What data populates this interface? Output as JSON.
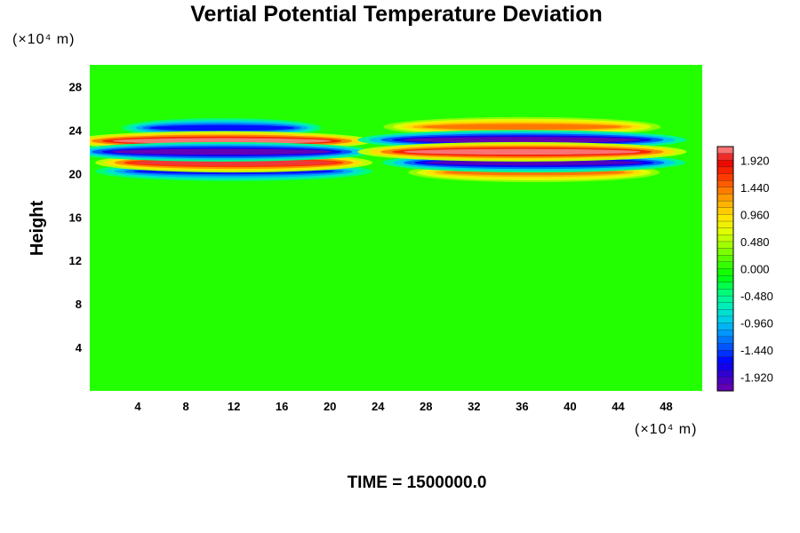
{
  "chart_data": {
    "type": "heatmap",
    "title": "Vertial Potential Temperature Deviation",
    "xlabel": "",
    "ylabel": "Height",
    "x_unit": "(×10⁴ m)",
    "y_unit": "(×10⁴ m)",
    "x_ticks": [
      "4",
      "8",
      "12",
      "16",
      "20",
      "24",
      "28",
      "32",
      "36",
      "40",
      "44",
      "48"
    ],
    "y_ticks": [
      "4",
      "8",
      "12",
      "16",
      "20",
      "24",
      "28"
    ],
    "xlim": [
      0,
      51
    ],
    "ylim": [
      0,
      30
    ],
    "colorbar": {
      "min": -2.16,
      "max": 2.16,
      "labels": [
        "1.920",
        "1.440",
        "0.960",
        "0.480",
        "0.000",
        "-0.480",
        "-0.960",
        "-1.440",
        "-1.920"
      ],
      "label_values": [
        1.92,
        1.44,
        0.96,
        0.48,
        0.0,
        -0.48,
        -0.96,
        -1.44,
        -1.92
      ]
    },
    "background_value": 0.0,
    "features": [
      {
        "name": "upper-negative-band-left",
        "x_range": [
          4,
          18
        ],
        "y": 24.2,
        "amplitude": -1.6
      },
      {
        "name": "upper-positive-band-right",
        "x_range": [
          26,
          46
        ],
        "y": 24.3,
        "amplitude": 1.4
      },
      {
        "name": "positive-band-left",
        "x_range": [
          0,
          22
        ],
        "y": 23.0,
        "amplitude": 2.1
      },
      {
        "name": "negative-band-right",
        "x_range": [
          24,
          48
        ],
        "y": 23.1,
        "amplitude": -2.1
      },
      {
        "name": "negative-band-left",
        "x_range": [
          0,
          22
        ],
        "y": 22.0,
        "amplitude": -2.1
      },
      {
        "name": "positive-band-right",
        "x_range": [
          24,
          48
        ],
        "y": 22.0,
        "amplitude": 2.1
      },
      {
        "name": "positive-lower-left",
        "x_range": [
          2,
          22
        ],
        "y": 21.0,
        "amplitude": 2.0
      },
      {
        "name": "negative-lower-right",
        "x_range": [
          26,
          48
        ],
        "y": 21.0,
        "amplitude": -2.0
      },
      {
        "name": "negative-bottom-left",
        "x_range": [
          2,
          22
        ],
        "y": 20.2,
        "amplitude": -1.6
      },
      {
        "name": "positive-bottom-right",
        "x_range": [
          28,
          46
        ],
        "y": 20.1,
        "amplitude": 1.4
      }
    ]
  },
  "footer": {
    "time_label": "TIME = 1500000.0"
  }
}
